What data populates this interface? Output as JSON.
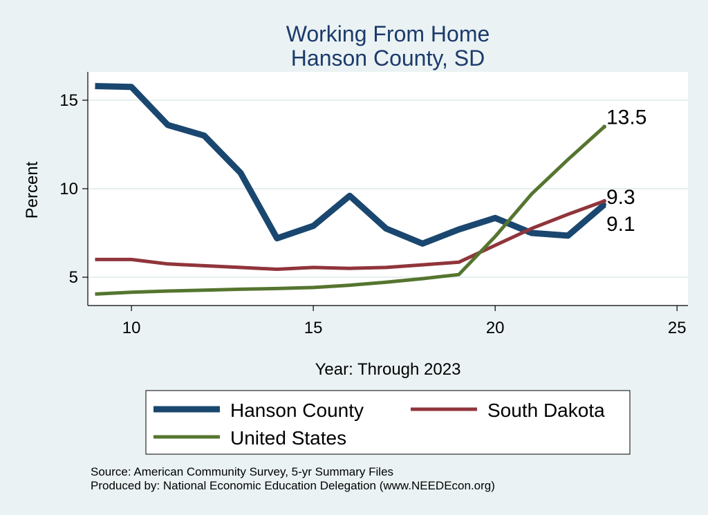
{
  "chart_data": {
    "type": "line",
    "title": [
      "Working From Home",
      "Hanson County, SD"
    ],
    "xlabel": "Year: Through 2023",
    "ylabel": "Percent",
    "xlim": [
      8.8,
      25.3
    ],
    "ylim": [
      3.4,
      16.6
    ],
    "xticks": [
      10,
      15,
      20,
      25
    ],
    "yticks": [
      5,
      10,
      15
    ],
    "grid": true,
    "legend_position": "bottom",
    "x": [
      9,
      10,
      11,
      12,
      13,
      14,
      15,
      16,
      17,
      18,
      19,
      20,
      21,
      22,
      23
    ],
    "series": [
      {
        "name": "Hanson County",
        "color": "#1a476f",
        "values": [
          15.8,
          15.75,
          13.6,
          13.0,
          10.9,
          7.2,
          7.9,
          9.6,
          7.75,
          6.9,
          7.7,
          8.35,
          7.5,
          7.35,
          9.1
        ],
        "end_label": "9.1"
      },
      {
        "name": "South Dakota",
        "color": "#90353b",
        "values": [
          6.0,
          6.0,
          5.75,
          5.65,
          5.55,
          5.45,
          5.55,
          5.5,
          5.55,
          5.7,
          5.85,
          6.8,
          7.75,
          8.55,
          9.3
        ],
        "end_label": "9.3"
      },
      {
        "name": "United States",
        "color": "#55752f",
        "values": [
          4.05,
          4.15,
          4.22,
          4.27,
          4.32,
          4.36,
          4.42,
          4.55,
          4.72,
          4.92,
          5.15,
          7.3,
          9.7,
          11.65,
          13.5
        ],
        "end_label": "13.5"
      }
    ]
  },
  "source_line": "Source: American Community Survey, 5-yr Summary Files",
  "produced_line": "Produced by: National Economic Education Delegation (www.NEEDEcon.org)"
}
